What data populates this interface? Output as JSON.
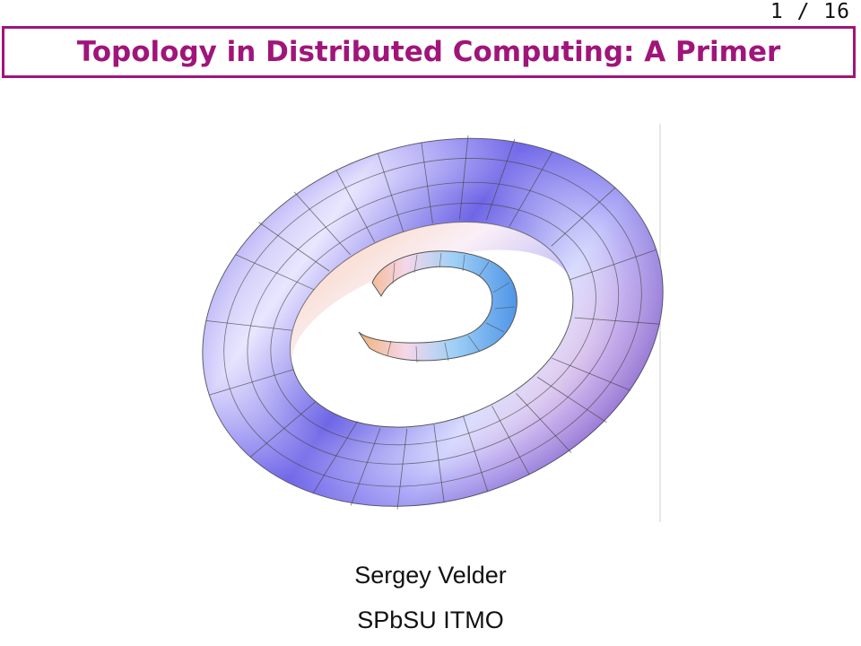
{
  "slide": {
    "page_number": "1 / 16",
    "title": "Topology in Distributed Computing: A Primer",
    "author": "Sergey Velder",
    "affiliation": "SPbSU ITMO"
  },
  "colors": {
    "accent": "#a0157a",
    "torus_blue": "#5b55e0",
    "torus_pink": "#f2a3c8",
    "torus_orange": "#f3a56a",
    "torus_white": "#ffffff"
  }
}
